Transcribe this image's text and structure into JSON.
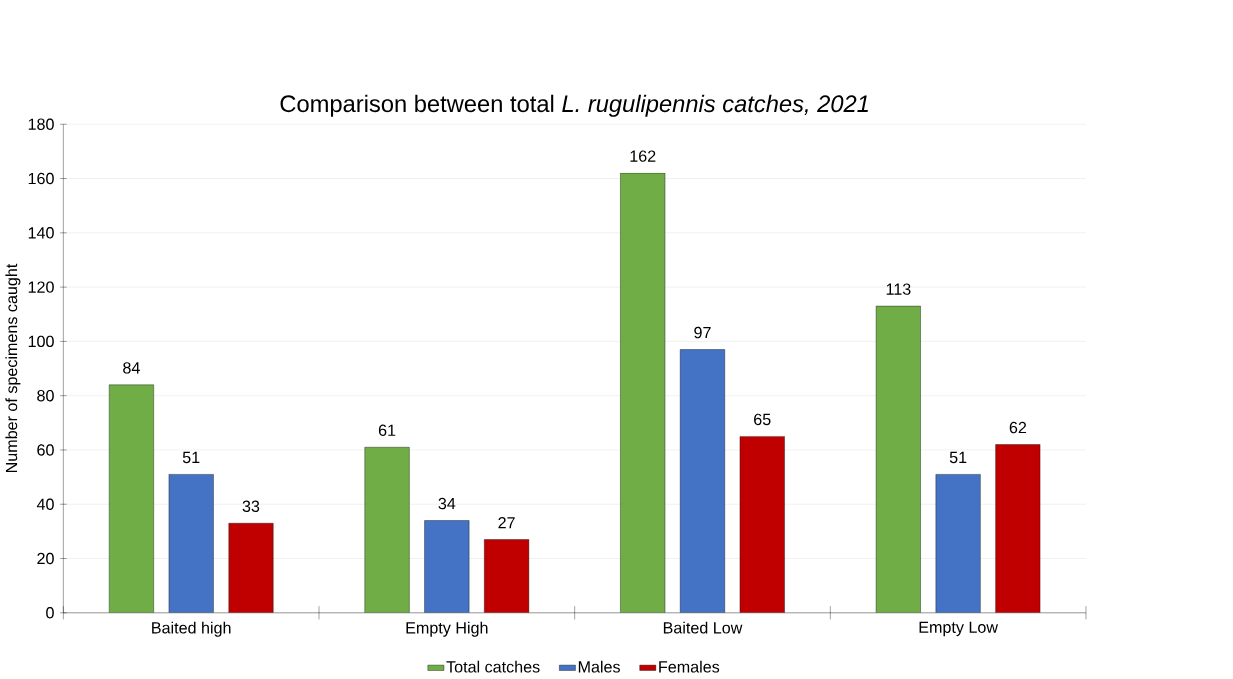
{
  "chart_data": {
    "type": "bar",
    "title": "Comparison between total *L. rugulipennis catches, 2021*",
    "ylabel": "Number of specimens caught",
    "categories": [
      "Baited high",
      "Empty High",
      "Baited Low",
      "Empty Low"
    ],
    "series": [
      {
        "name": "Total catches",
        "color": "#70ad47",
        "values": [
          84,
          61,
          162,
          113
        ]
      },
      {
        "name": "Males",
        "color": "#4472c4",
        "values": [
          51,
          34,
          97,
          51
        ]
      },
      {
        "name": "Females",
        "color": "#c00000",
        "values": [
          33,
          27,
          65,
          62
        ]
      }
    ],
    "ylim": [
      0,
      180
    ],
    "yticks": [
      0,
      20,
      40,
      60,
      80,
      100,
      120,
      140,
      160,
      180
    ],
    "grid": "y",
    "legend": "bottom",
    "data_labels": true
  }
}
